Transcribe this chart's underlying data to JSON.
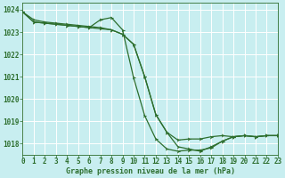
{
  "title": "Graphe pression niveau de la mer (hPa)",
  "bg_color": "#c8eef0",
  "grid_color": "#ffffff",
  "line_color": "#2d6e2d",
  "text_color": "#2d6e2d",
  "xlim": [
    0,
    23
  ],
  "ylim": [
    1017.5,
    1024.3
  ],
  "yticks": [
    1018,
    1019,
    1020,
    1021,
    1022,
    1023,
    1024
  ],
  "xticks": [
    0,
    1,
    2,
    3,
    4,
    5,
    6,
    7,
    8,
    9,
    10,
    11,
    12,
    13,
    14,
    15,
    16,
    17,
    18,
    19,
    20,
    21,
    22,
    23
  ],
  "line1_x": [
    0,
    1,
    2,
    3,
    4,
    5,
    6,
    7,
    8,
    9,
    10,
    11,
    12,
    13,
    14,
    15,
    16,
    17,
    18,
    19,
    20,
    21,
    22,
    23
  ],
  "line1_y": [
    1023.9,
    1023.45,
    1023.4,
    1023.35,
    1023.3,
    1023.25,
    1023.2,
    1023.15,
    1023.1,
    1022.9,
    1022.45,
    1021.0,
    1019.3,
    1018.5,
    1017.85,
    1017.75,
    1017.65,
    1017.85,
    1018.1,
    1018.3,
    1018.35,
    1018.3,
    1018.35,
    1018.35
  ],
  "line2_x": [
    0,
    1,
    2,
    3,
    4,
    5,
    6,
    7,
    8,
    9,
    10,
    11,
    12,
    13,
    14,
    15,
    16,
    17,
    18,
    19,
    20,
    21,
    22,
    23
  ],
  "line2_y": [
    1023.9,
    1023.45,
    1023.4,
    1023.35,
    1023.3,
    1023.25,
    1023.2,
    1023.55,
    1023.65,
    1023.1,
    1020.95,
    1019.25,
    1018.2,
    1017.75,
    1017.65,
    1017.7,
    1017.7,
    1017.8,
    1018.1,
    1018.3,
    1018.35,
    1018.3,
    1018.35,
    1018.35
  ],
  "line3_x": [
    0,
    1,
    2,
    3,
    4,
    5,
    6,
    7,
    8,
    9,
    10,
    11,
    12,
    13,
    14,
    15,
    16,
    17,
    18,
    19,
    20,
    21,
    22,
    23
  ],
  "line3_y": [
    1023.9,
    1023.55,
    1023.45,
    1023.4,
    1023.35,
    1023.3,
    1023.25,
    1023.2,
    1023.1,
    1022.9,
    1022.45,
    1021.0,
    1019.3,
    1018.5,
    1018.15,
    1018.2,
    1018.2,
    1018.3,
    1018.35,
    1018.3,
    1018.35,
    1018.3,
    1018.35,
    1018.35
  ],
  "tick_fontsize": 5.5,
  "label_fontsize": 6.0,
  "marker_size": 2.0,
  "line_width": 0.9
}
